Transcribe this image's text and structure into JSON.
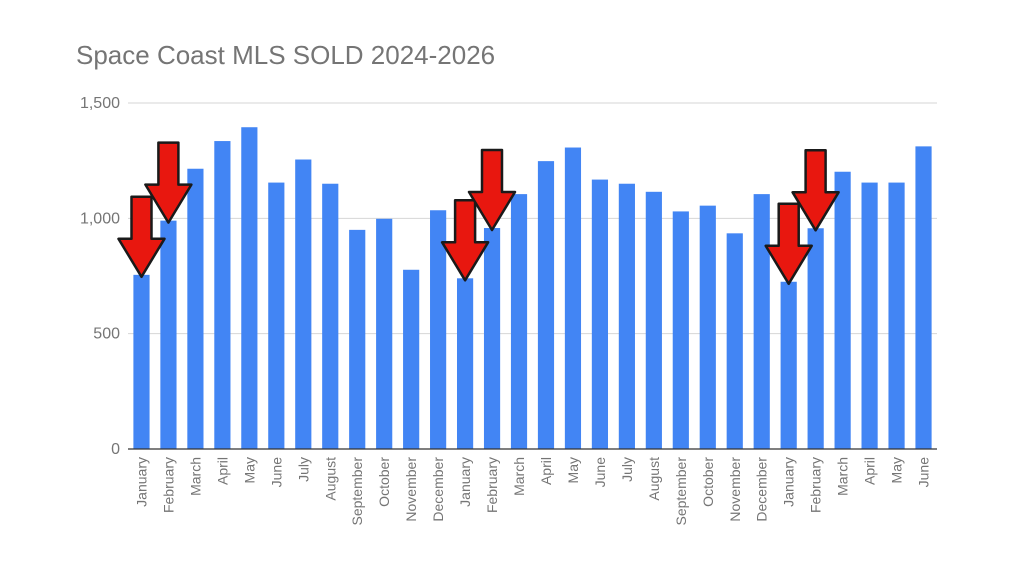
{
  "chart_data": {
    "type": "bar",
    "title": "Space Coast MLS SOLD 2024-2026",
    "xlabel": "",
    "ylabel": "",
    "ylim": [
      0,
      1500
    ],
    "yticks": [
      "0",
      "500",
      "1,000",
      "1,500"
    ],
    "ytick_values": [
      0,
      500,
      1000,
      1500
    ],
    "grid": true,
    "legend": "none",
    "bar_color": "#4285f4",
    "annotation_color": "#e8170f",
    "categories": [
      "January",
      "February",
      "March",
      "April",
      "May",
      "June",
      "July",
      "August",
      "September",
      "October",
      "November",
      "December",
      "January",
      "February",
      "March",
      "April",
      "May",
      "June",
      "July",
      "August",
      "September",
      "October",
      "November",
      "December",
      "January",
      "February",
      "March",
      "April",
      "May",
      "June"
    ],
    "values": [
      755,
      990,
      1215,
      1335,
      1395,
      1155,
      1255,
      1150,
      950,
      998,
      777,
      1035,
      740,
      958,
      1105,
      1248,
      1307,
      1168,
      1150,
      1115,
      1030,
      1055,
      935,
      1105,
      725,
      957,
      1202,
      1155,
      1155,
      1312
    ],
    "annotations": [
      {
        "type": "arrow-down",
        "category_index": 0
      },
      {
        "type": "arrow-down",
        "category_index": 1
      },
      {
        "type": "arrow-down",
        "category_index": 12
      },
      {
        "type": "arrow-down",
        "category_index": 13
      },
      {
        "type": "arrow-down",
        "category_index": 24
      },
      {
        "type": "arrow-down",
        "category_index": 25
      }
    ]
  }
}
